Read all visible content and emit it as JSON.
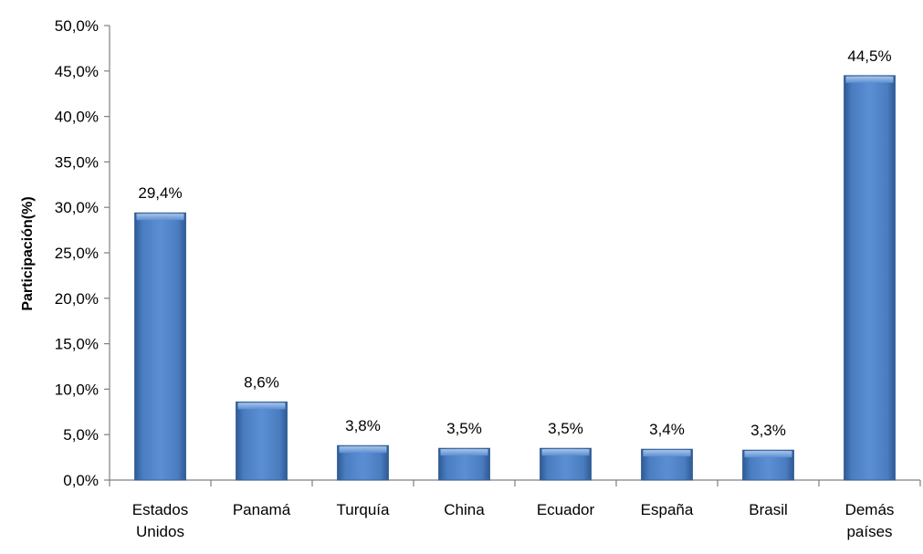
{
  "chart_data": {
    "type": "bar",
    "categories": [
      [
        "Estados",
        "Unidos"
      ],
      [
        "Panamá"
      ],
      [
        "Turquía"
      ],
      [
        "China"
      ],
      [
        "Ecuador"
      ],
      [
        "España"
      ],
      [
        "Brasil"
      ],
      [
        "Demás",
        "países"
      ]
    ],
    "values": [
      29.4,
      8.6,
      3.8,
      3.5,
      3.5,
      3.4,
      3.3,
      44.5
    ],
    "value_labels": [
      "29,4%",
      "8,6%",
      "3,8%",
      "3,5%",
      "3,5%",
      "3,4%",
      "3,3%",
      "44,5%"
    ],
    "ylabel": "Participación(%)",
    "ylim": [
      0,
      50
    ],
    "yticks": [
      0,
      5,
      10,
      15,
      20,
      25,
      30,
      35,
      40,
      45,
      50
    ],
    "ytick_labels": [
      "0,0%",
      "5,0%",
      "10,0%",
      "15,0%",
      "20,0%",
      "25,0%",
      "30,0%",
      "35,0%",
      "40,0%",
      "45,0%",
      "50,0%"
    ],
    "grid": false,
    "bar_color": "#4F81BD"
  }
}
